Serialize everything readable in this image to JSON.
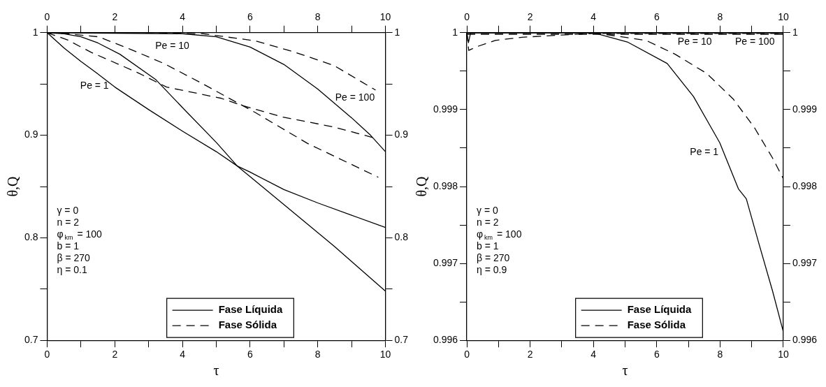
{
  "chart_data": [
    {
      "type": "line",
      "xlabel": "τ",
      "ylabel": "θ,Q",
      "xlim": [
        0,
        10
      ],
      "xticks": [
        0,
        {
          "value": 1,
          "label": null
        },
        2,
        {
          "value": 3,
          "label": null
        },
        4,
        {
          "value": 5,
          "label": null
        },
        6,
        {
          "value": 7,
          "label": null
        },
        8,
        {
          "value": 9,
          "label": null
        },
        10
      ],
      "x2lim": [
        0,
        10
      ],
      "x2ticks": [
        0,
        {
          "value": 1,
          "label": null
        },
        2,
        {
          "value": 3,
          "label": null
        },
        4,
        {
          "value": 5,
          "label": null
        },
        6,
        {
          "value": 7,
          "label": null
        },
        8,
        {
          "value": 9,
          "label": null
        },
        10
      ],
      "ylim": [
        0.7,
        1
      ],
      "yticks": [
        0.7,
        {
          "value": 0.75,
          "label": null
        },
        0.8,
        {
          "value": 0.85,
          "label": null
        },
        0.9,
        {
          "value": 0.95,
          "label": null
        },
        1
      ],
      "y2lim": [
        0.7,
        1
      ],
      "y2ticks": [
        0.7,
        {
          "value": 0.75,
          "label": null
        },
        0.8,
        {
          "value": 0.85,
          "label": null
        },
        0.9,
        {
          "value": 0.95,
          "label": null
        },
        1
      ],
      "grid": false,
      "legend": "bottom",
      "marker": "none",
      "series": [
        {
          "name": "Fase Líquida",
          "color": "#000000",
          "line_style": "solid",
          "x": [
            0,
            0.5,
            1,
            1.45,
            2,
            3,
            4,
            5,
            5.62,
            6,
            7,
            8,
            9,
            10
          ],
          "values": [
            1,
            0.985,
            0.972,
            0.961,
            0.947,
            0.925,
            0.904,
            0.884,
            0.87,
            0.864,
            0.847,
            0.834,
            0.822,
            0.81
          ]
        },
        {
          "color": "#000000",
          "line_style": "solid",
          "x": [
            0,
            0.5,
            1,
            1.5,
            2.15,
            3.22,
            4,
            5,
            5.62,
            6.94,
            8.48,
            10
          ],
          "values": [
            1,
            0.999,
            0.996,
            0.99,
            0.979,
            0.954,
            0.927,
            0.893,
            0.87,
            0.834,
            0.792,
            0.748
          ]
        },
        {
          "color": "#000000",
          "line_style": "solid",
          "x": [
            0,
            4,
            5,
            6,
            7,
            7.71,
            8,
            9,
            9.56,
            10
          ],
          "values": [
            1,
            0.999,
            0.996,
            0.986,
            0.969,
            0.952,
            0.945,
            0.917,
            0.9,
            0.884
          ]
        },
        {
          "name": "Fase Sólida",
          "color": "#000000",
          "line_style": "dashed",
          "x": [
            0,
            0.6,
            1.29,
            2.68,
            3.53,
            5.15,
            5.77,
            6.93,
            8.48,
            9.71
          ],
          "values": [
            1,
            0.993,
            0.981,
            0.961,
            0.947,
            0.936,
            0.929,
            0.918,
            0.908,
            0.897
          ]
        },
        {
          "color": "#000000",
          "line_style": "dashed",
          "x": [
            0,
            0.6,
            1.52,
            2.45,
            3.45,
            4.61,
            6.16,
            7.7,
            9.79
          ],
          "values": [
            1,
            0.999,
            0.996,
            0.984,
            0.97,
            0.95,
            0.922,
            0.892,
            0.859
          ]
        },
        {
          "color": "#000000",
          "line_style": "dashed",
          "x": [
            0,
            3,
            4.61,
            6.16,
            7.32,
            8.48,
            9.71
          ],
          "values": [
            1,
            1,
            0.999,
            0.992,
            0.981,
            0.968,
            0.944
          ]
        }
      ],
      "annotations": [
        "Pe = 10",
        "Pe = 1",
        "Pe = 100",
        "γ = 0",
        "n = 2",
        "φ$_{km}$ = 100",
        "b = 1",
        "β = 270",
        "η = 0.1"
      ]
    },
    {
      "type": "line",
      "xlabel": "τ",
      "ylabel": "θ,Q",
      "xlim": [
        0,
        10
      ],
      "xticks": [
        0,
        {
          "value": 1,
          "label": null
        },
        2,
        {
          "value": 3,
          "label": null
        },
        4,
        {
          "value": 5,
          "label": null
        },
        6,
        {
          "value": 7,
          "label": null
        },
        8,
        {
          "value": 9,
          "label": null
        },
        10
      ],
      "x2lim": [
        0,
        10
      ],
      "x2ticks": [
        0,
        {
          "value": 1,
          "label": null
        },
        2,
        {
          "value": 3,
          "label": null
        },
        4,
        {
          "value": 5,
          "label": null
        },
        6,
        {
          "value": 7,
          "label": null
        },
        8,
        {
          "value": 9,
          "label": null
        },
        10
      ],
      "ylim": [
        0.996,
        1
      ],
      "yticks": [
        0.996,
        {
          "value": 0.9965,
          "label": null
        },
        0.997,
        {
          "value": 0.9975,
          "label": null
        },
        0.998,
        {
          "value": 0.9985,
          "label": null
        },
        0.999,
        {
          "value": 0.9995,
          "label": null
        },
        1
      ],
      "y2lim": [
        0.996,
        1
      ],
      "y2ticks": [
        0.996,
        {
          "value": 0.9965,
          "label": null
        },
        0.997,
        {
          "value": 0.9975,
          "label": null
        },
        0.998,
        {
          "value": 0.9985,
          "label": null
        },
        0.999,
        {
          "value": 0.9995,
          "label": null
        },
        1
      ],
      "grid": false,
      "legend": "bottom",
      "marker": "none",
      "series": [
        {
          "name": "Fase Líquida",
          "color": "#000000",
          "line_style": "solid",
          "x": [
            0,
            4,
            5.07,
            6.33,
            7.16,
            7.99,
            8.58,
            8.83,
            9.24,
            9.66,
            10
          ],
          "values": [
            1,
            1,
            0.99988,
            0.9996,
            0.99917,
            0.99857,
            0.99797,
            0.99784,
            0.99724,
            0.99664,
            0.99611
          ]
        },
        {
          "color": "#000000",
          "line_style": "solid",
          "x": [
            0,
            0.05,
            0.12,
            1,
            10
          ],
          "values": [
            1,
            0.99987,
            1,
            1,
            1
          ]
        },
        {
          "color": "#000000",
          "line_style": "solid",
          "x": [
            0,
            10
          ],
          "values": [
            1,
            1
          ]
        },
        {
          "name": "Fase Sólida",
          "color": "#000000",
          "line_style": "dashed",
          "x": [
            0,
            4,
            5.66,
            6.58,
            7.58,
            8.41,
            9.08,
            9.66,
            10
          ],
          "values": [
            1,
            1,
            0.9999,
            0.99972,
            0.99947,
            0.99914,
            0.99877,
            0.99837,
            0.9981
          ]
        },
        {
          "color": "#000000",
          "line_style": "dashed",
          "x": [
            0,
            0.06,
            0.33,
            0.9,
            1.74,
            3,
            4,
            10
          ],
          "values": [
            1,
            0.99977,
            0.99982,
            0.9999,
            0.99994,
            0.99997,
            0.99999,
            0.99999
          ]
        },
        {
          "color": "#000000",
          "line_style": "dashed",
          "x": [
            0,
            10
          ],
          "values": [
            0.99998,
            0.99998
          ]
        }
      ],
      "annotations": [
        "Pe = 10",
        "Pe = 100",
        "Pe = 1",
        "γ = 0",
        "n = 2",
        "φ$_{km}$ = 100",
        "b = 1",
        "β = 270",
        "η = 0.9"
      ]
    }
  ]
}
